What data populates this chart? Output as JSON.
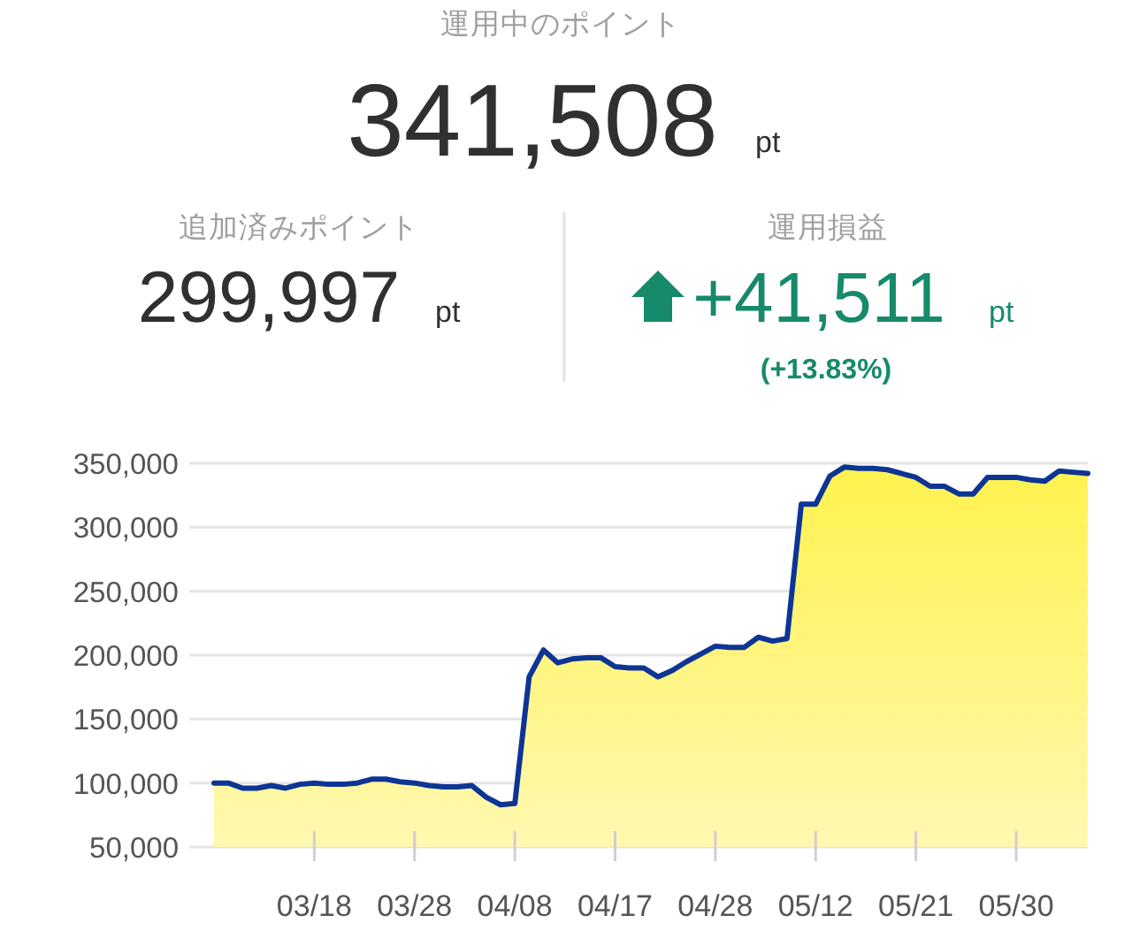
{
  "chart_data": [
    {
      "type": "other",
      "title": "運用中のポイント",
      "annotations": [
        "341,508",
        "pt",
        "追加済みポイント",
        "299,997",
        "pt",
        "運用損益",
        "+41,511",
        "pt",
        "(+13.83%)"
      ]
    },
    {
      "type": "area",
      "categories": [
        null,
        null,
        null,
        null,
        null,
        null,
        null,
        "03/18",
        null,
        null,
        null,
        null,
        null,
        null,
        "03/28",
        null,
        null,
        null,
        null,
        null,
        null,
        "04/08",
        null,
        null,
        null,
        null,
        null,
        null,
        "04/17",
        null,
        null,
        null,
        null,
        null,
        null,
        "04/28",
        null,
        null,
        null,
        null,
        null,
        null,
        "05/12",
        null,
        null,
        null,
        null,
        null,
        null,
        "05/21",
        null,
        null,
        null,
        null,
        null,
        null,
        "05/30",
        null,
        null,
        null,
        null,
        null
      ],
      "series": [
        {
          "color": "#0d3594",
          "values": [
            100000,
            100000,
            96000,
            96000,
            98000,
            96000,
            99000,
            100000,
            99000,
            99000,
            100000,
            103000,
            103000,
            101000,
            100000,
            98000,
            97000,
            97000,
            98000,
            89000,
            83000,
            84000,
            183000,
            204000,
            194000,
            197000,
            198000,
            198000,
            191000,
            190000,
            190000,
            183000,
            188000,
            195000,
            201000,
            207000,
            206000,
            206000,
            214000,
            211000,
            213000,
            318000,
            318000,
            340000,
            347000,
            346000,
            346000,
            345000,
            342000,
            339000,
            332000,
            332000,
            326000,
            326000,
            339000,
            339000,
            339000,
            337000,
            336000,
            344000,
            343000,
            342000
          ]
        }
      ],
      "ylim": [
        50000,
        350000
      ],
      "yticks": [
        {
          "value": 50000,
          "label": "50,000"
        },
        {
          "value": 100000,
          "label": "100,000"
        },
        {
          "value": 150000,
          "label": "150,000"
        },
        {
          "value": 200000,
          "label": "200,000"
        },
        {
          "value": 250000,
          "label": "250,000"
        },
        {
          "value": 300000,
          "label": "300,000"
        },
        {
          "value": 350000,
          "label": "350,000"
        }
      ],
      "grid": "y"
    }
  ]
}
